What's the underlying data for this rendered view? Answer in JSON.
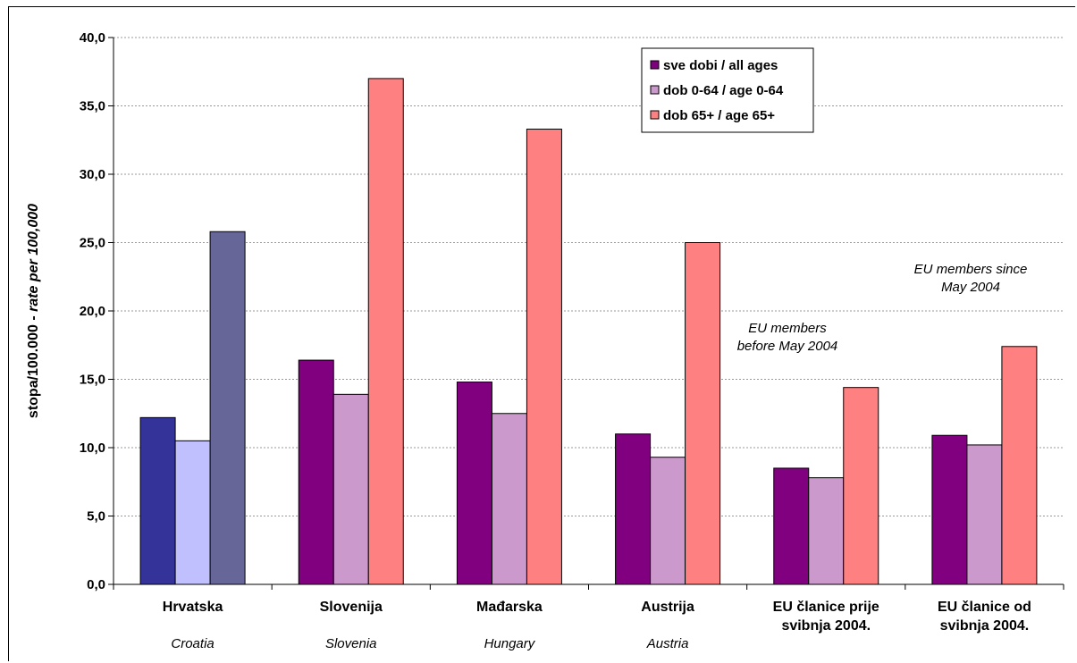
{
  "chart_data": {
    "type": "bar",
    "title": "",
    "ylabel_main": "stopa/100.000 - ",
    "ylabel_italic": "rate per 100,000",
    "ylim": [
      0,
      40
    ],
    "yticks": [
      "0,0",
      "5,0",
      "10,0",
      "15,0",
      "20,0",
      "25,0",
      "30,0",
      "35,0",
      "40,0"
    ],
    "grid": "horizontal dashed",
    "legend_position": "top-center",
    "categories": [
      {
        "lines": [
          "Hrvatska"
        ],
        "sub": "Croatia"
      },
      {
        "lines": [
          "Slovenija"
        ],
        "sub": "Slovenia"
      },
      {
        "lines": [
          "Mađarska"
        ],
        "sub": "Hungary"
      },
      {
        "lines": [
          "Austrija"
        ],
        "sub": "Austria"
      },
      {
        "lines": [
          "EU članice prije",
          "svibnja 2004."
        ],
        "sub": ""
      },
      {
        "lines": [
          "EU članice od",
          "svibnja 2004."
        ],
        "sub": ""
      }
    ],
    "series": [
      {
        "name": "sve dobi / all ages",
        "color": "#800080",
        "values": [
          12.2,
          16.4,
          14.8,
          11.0,
          8.5,
          10.9
        ]
      },
      {
        "name": "dob 0-64 / age 0-64",
        "color": "#CC99CC",
        "values": [
          10.5,
          13.9,
          12.5,
          9.3,
          7.8,
          10.2
        ]
      },
      {
        "name": "dob 65+ / age 65+",
        "color": "#FF8080",
        "values": [
          25.8,
          37.0,
          33.3,
          25.0,
          14.4,
          17.4
        ]
      }
    ],
    "highlight": {
      "category_index": 0,
      "colors": [
        "#333399",
        "#C0C0FF",
        "#666699"
      ]
    },
    "annotations": [
      {
        "lines": [
          "EU members",
          "before May 2004"
        ],
        "near_category": 4
      },
      {
        "lines": [
          "EU members since",
          "May 2004"
        ],
        "near_category": 5
      }
    ]
  }
}
